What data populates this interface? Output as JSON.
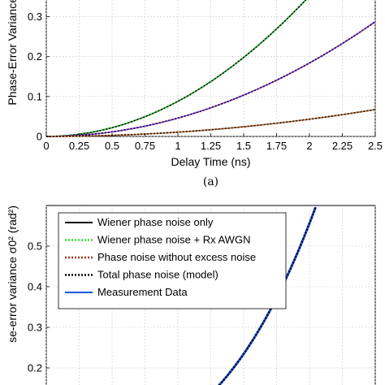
{
  "chart_data": [
    {
      "type": "line",
      "xlabel": "Delay Time (ns)",
      "ylabel": "Phase-Error Variance",
      "caption": "(a)",
      "xlim": [
        0,
        2.5
      ],
      "ylim": [
        0,
        0.35
      ],
      "xticks": [
        "0",
        "0.25",
        "0.5",
        "0.75",
        "1",
        "1.25",
        "1.5",
        "1.75",
        "2",
        "2.25",
        "2.5"
      ],
      "yticks": [
        "0",
        "0.1",
        "0.2",
        "0.3"
      ],
      "grid": true,
      "series": [
        {
          "color": "#000000",
          "style": "solid",
          "coef": 0.088
        },
        {
          "color": "#22cc22",
          "style": "dotted",
          "coef": 0.088
        },
        {
          "color": "#9933ff",
          "style": "solid",
          "coef": 0.046
        },
        {
          "color": "#1a1a1a",
          "style": "dotted",
          "coef": 0.046
        },
        {
          "color": "#d2691e",
          "style": "solid",
          "coef": 0.0108
        },
        {
          "color": "#222222",
          "style": "dotted",
          "coef": 0.0108
        }
      ]
    },
    {
      "type": "line",
      "ylabel": "se-error variance σ0² (rad²)",
      "ylim": [
        0.15,
        0.6
      ],
      "xlim": [
        0,
        2.5
      ],
      "yticks": [
        "0.2",
        "0.3",
        "0.4",
        "0.5"
      ],
      "grid": true,
      "legend_position": "top-left",
      "legend": [
        {
          "name": "Wiener phase noise only",
          "color": "#000000",
          "style": "solid"
        },
        {
          "name": "Wiener phase noise + Rx AWGN",
          "color": "#33dd33",
          "style": "dotted"
        },
        {
          "name": "Phase noise without excess noise",
          "color": "#a0361a",
          "style": "dotted"
        },
        {
          "name": "Total phase noise (model)",
          "color": "#000000",
          "style": "dotted"
        },
        {
          "name": "Measurement Data",
          "color": "#2255dd",
          "style": "solid"
        }
      ],
      "series": [
        {
          "name": "Measurement Data",
          "color": "#2255dd",
          "style": "solid",
          "coef": 0.0695
        },
        {
          "name": "Total phase noise (model)",
          "color": "#000000",
          "style": "dotted",
          "coef": 0.0695
        }
      ]
    }
  ]
}
